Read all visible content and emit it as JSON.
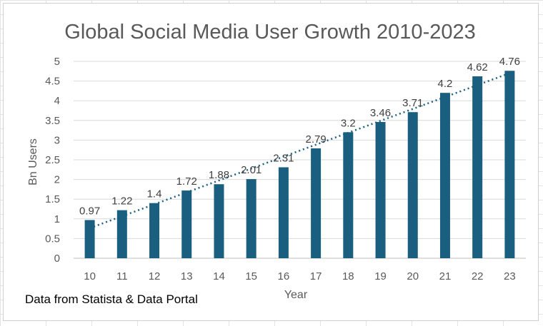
{
  "chart_data": {
    "type": "bar",
    "title": "Global Social Media User Growth 2010-2023",
    "xlabel": "Year",
    "ylabel": "Bn  Users",
    "categories": [
      "10",
      "11",
      "12",
      "13",
      "14",
      "15",
      "16",
      "17",
      "18",
      "19",
      "20",
      "21",
      "22",
      "23"
    ],
    "values": [
      0.97,
      1.22,
      1.4,
      1.72,
      1.88,
      2.01,
      2.31,
      2.79,
      3.2,
      3.46,
      3.71,
      4.2,
      4.62,
      4.76
    ],
    "data_labels": [
      "0.97",
      "1.22",
      "1.4",
      "1.72",
      "1.88",
      "2.01",
      "2.31",
      "2.79",
      "3.2",
      "3.46",
      "3.71",
      "4.2",
      "4.62",
      "4.76"
    ],
    "ylim": [
      0,
      5
    ],
    "yticks": [
      "0",
      "0.5",
      "1",
      "1.5",
      "2",
      "2.5",
      "3",
      "3.5",
      "4",
      "4.5",
      "5"
    ],
    "grid": true,
    "legend": "none",
    "trendline": {
      "type": "linear",
      "style": "dotted"
    },
    "annotation": "Data from Statista & Data Portal",
    "colors": {
      "bar": "#1a5f7f",
      "trendline": "#1a5f7f",
      "grid": "#d9d9d9",
      "text": "#595959"
    }
  }
}
